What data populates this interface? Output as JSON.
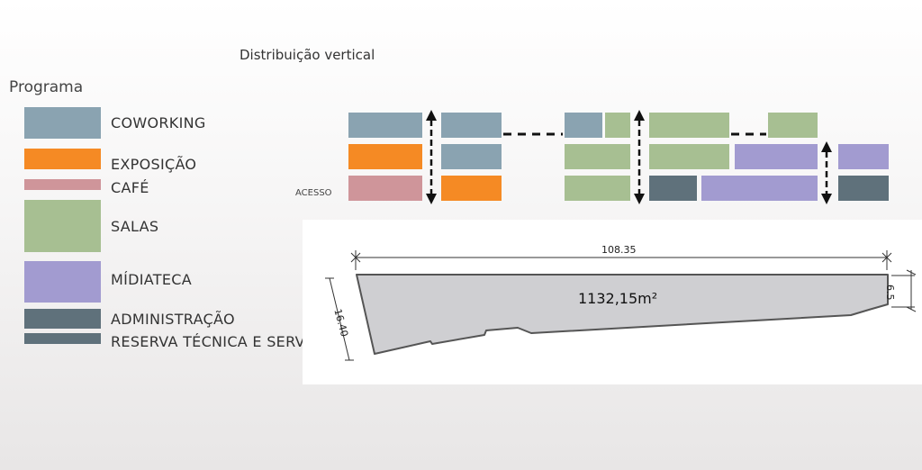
{
  "titles": {
    "programa": "Programa",
    "distribuicao": "Distribuição vertical"
  },
  "colors": {
    "coworking": "#8aa3b1",
    "exposicao": "#f58a24",
    "cafe": "#cf959a",
    "salas": "#a7bf92",
    "midiateca": "#a29bd0",
    "administracao": "#5f717b",
    "reserva": "#5f717b"
  },
  "legend": [
    {
      "key": "coworking",
      "label": "COWORKING"
    },
    {
      "key": "exposicao",
      "label": "EXPOSIÇÃO"
    },
    {
      "key": "cafe",
      "label": "CAFÉ"
    },
    {
      "key": "salas",
      "label": "SALAS"
    },
    {
      "key": "midiateca",
      "label": "MÍDIATECA"
    },
    {
      "key": "administracao",
      "label": "ADMINISTRAÇÃO"
    },
    {
      "key": "reserva",
      "label": "RESERVA TÉCNICA E SERVIÇOS"
    }
  ],
  "diagram": {
    "acesso_label": "ACESSO"
  },
  "site": {
    "length_label": "108.35",
    "left_side_label": "16.40",
    "right_side_label": "6.5",
    "area_label": "1132,15m²"
  }
}
